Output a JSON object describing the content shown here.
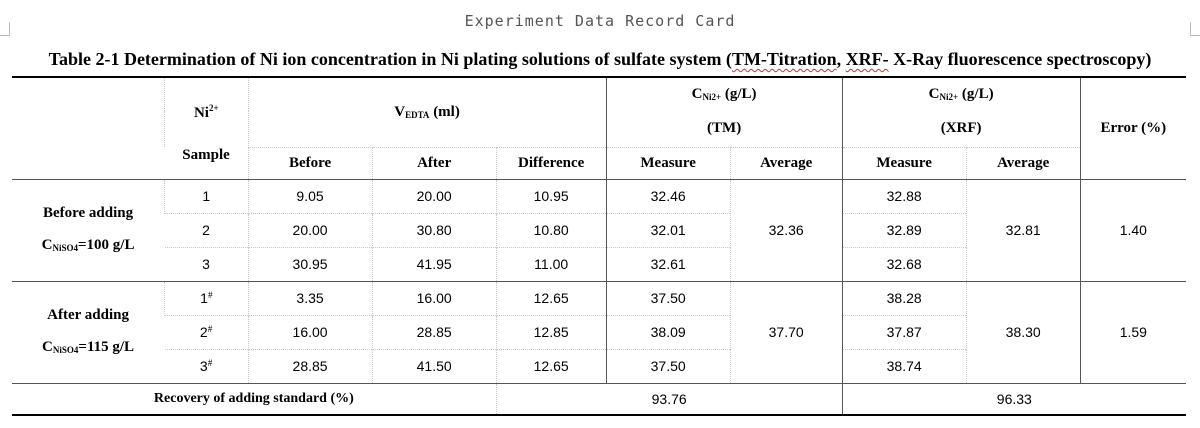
{
  "card_title": "Experiment Data Record Card",
  "caption": {
    "prefix": "Table 2-1 Determination of Ni ion concentration in Ni plating solutions of sulfate system (",
    "tm_titration": "TM-Titration",
    "sep": ", ",
    "xrf_dash": "XRF-",
    "suffix": " X-Ray fluorescence spectroscopy)"
  },
  "header": {
    "ni_base": "Ni",
    "ni_sup": "2+",
    "sample": "Sample",
    "vedta_base": "V",
    "vedta_sub": "EDTA",
    "vedta_unit": " (ml)",
    "c_base": "C",
    "c_sub": "Ni2+",
    "c_unit": " (g/L)",
    "tm": "(TM)",
    "xrf": "(XRF)",
    "error": "Error (%)",
    "before": "Before",
    "after": "After",
    "difference": "Difference",
    "measure": "Measure",
    "average": "Average"
  },
  "groups": [
    {
      "label": "Before adding",
      "conc_base": "C",
      "conc_sub": "NiSO4",
      "conc_val": "=100 g/L",
      "tm_average": "32.36",
      "xrf_average": "32.81",
      "error": "1.40",
      "rows": [
        {
          "sample": "1",
          "sample_sup": "",
          "before": "9.05",
          "after": "20.00",
          "difference": "10.95",
          "tm_measure": "32.46",
          "xrf_measure": "32.88"
        },
        {
          "sample": "2",
          "sample_sup": "",
          "before": "20.00",
          "after": "30.80",
          "difference": "10.80",
          "tm_measure": "32.01",
          "xrf_measure": "32.89"
        },
        {
          "sample": "3",
          "sample_sup": "",
          "before": "30.95",
          "after": "41.95",
          "difference": "11.00",
          "tm_measure": "32.61",
          "xrf_measure": "32.68"
        }
      ]
    },
    {
      "label": "After adding",
      "conc_base": "C",
      "conc_sub": "NiSO4",
      "conc_val": "=115 g/L",
      "tm_average": "37.70",
      "xrf_average": "38.30",
      "error": "1.59",
      "rows": [
        {
          "sample": "1",
          "sample_sup": "#",
          "before": "3.35",
          "after": "16.00",
          "difference": "12.65",
          "tm_measure": "37.50",
          "xrf_measure": "38.28"
        },
        {
          "sample": "2",
          "sample_sup": "#",
          "before": "16.00",
          "after": "28.85",
          "difference": "12.85",
          "tm_measure": "38.09",
          "xrf_measure": "37.87"
        },
        {
          "sample": "3",
          "sample_sup": "#",
          "before": "28.85",
          "after": "41.50",
          "difference": "12.65",
          "tm_measure": "37.50",
          "xrf_measure": "38.74"
        }
      ]
    }
  ],
  "recovery": {
    "label": "Recovery of adding standard (%)",
    "tm": "93.76",
    "xrf": "96.33"
  }
}
